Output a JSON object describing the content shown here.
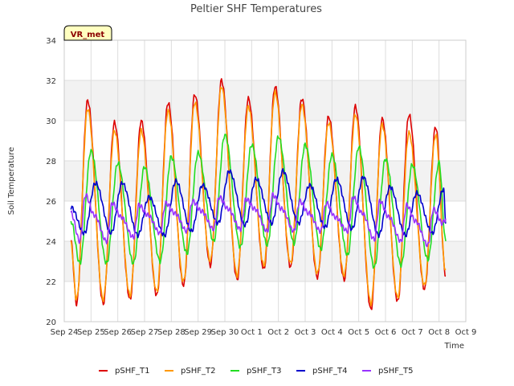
{
  "chart_data": {
    "type": "line",
    "title": "Peltier SHF Temperatures",
    "xlabel": "Time",
    "ylabel": "Soil Temperature",
    "site_label": "VR_met",
    "ylim": [
      20,
      34
    ],
    "yticks": [
      20,
      22,
      24,
      26,
      28,
      30,
      32,
      34
    ],
    "xlim": [
      "2023-09-24",
      "2023-10-09"
    ],
    "xticks": [
      "Sep 24",
      "Sep 25",
      "Sep 26",
      "Sep 27",
      "Sep 28",
      "Sep 29",
      "Sep 30",
      "Oct 1",
      "Oct 2",
      "Oct 3",
      "Oct 4",
      "Oct 5",
      "Oct 6",
      "Oct 7",
      "Oct 8",
      "Oct 9"
    ],
    "grid": true,
    "background_bands": true,
    "legend_position": "bottom",
    "series": [
      {
        "name": "pSHF_T1",
        "color": "#dd0000",
        "points": [
          [
            "2023-09-24 06:00",
            24.0
          ],
          [
            "2023-09-24 11:00",
            20.9
          ],
          [
            "2023-09-24 21:00",
            31.0
          ],
          [
            "2023-09-25 11:00",
            20.9
          ],
          [
            "2023-09-25 21:00",
            29.9
          ],
          [
            "2023-09-26 11:00",
            21.1
          ],
          [
            "2023-09-26 21:00",
            30.0
          ],
          [
            "2023-09-27 11:00",
            21.3
          ],
          [
            "2023-09-27 21:00",
            30.9
          ],
          [
            "2023-09-28 11:00",
            21.8
          ],
          [
            "2023-09-28 21:00",
            31.3
          ],
          [
            "2023-09-29 11:00",
            22.8
          ],
          [
            "2023-09-29 21:00",
            32.0
          ],
          [
            "2023-09-30 11:00",
            22.1
          ],
          [
            "2023-09-30 21:00",
            31.1
          ],
          [
            "2023-10-01 11:00",
            22.6
          ],
          [
            "2023-10-01 21:00",
            31.7
          ],
          [
            "2023-10-02 11:00",
            22.7
          ],
          [
            "2023-10-02 21:00",
            31.1
          ],
          [
            "2023-10-03 11:00",
            22.2
          ],
          [
            "2023-10-03 21:00",
            30.2
          ],
          [
            "2023-10-04 11:00",
            22.1
          ],
          [
            "2023-10-04 21:00",
            30.7
          ],
          [
            "2023-10-05 11:00",
            20.6
          ],
          [
            "2023-10-05 21:00",
            30.1
          ],
          [
            "2023-10-06 11:00",
            21.0
          ],
          [
            "2023-10-06 21:00",
            30.3
          ],
          [
            "2023-10-07 11:00",
            21.6
          ],
          [
            "2023-10-07 21:00",
            29.7
          ],
          [
            "2023-10-08 06:00",
            22.3
          ]
        ]
      },
      {
        "name": "pSHF_T2",
        "color": "#ff9900",
        "points": [
          [
            "2023-09-24 06:00",
            23.9
          ],
          [
            "2023-09-24 11:00",
            21.1
          ],
          [
            "2023-09-24 21:00",
            30.6
          ],
          [
            "2023-09-25 11:00",
            21.1
          ],
          [
            "2023-09-25 21:00",
            29.5
          ],
          [
            "2023-09-26 11:00",
            21.3
          ],
          [
            "2023-09-26 21:00",
            29.5
          ],
          [
            "2023-09-27 11:00",
            21.5
          ],
          [
            "2023-09-27 21:00",
            30.5
          ],
          [
            "2023-09-28 11:00",
            22.0
          ],
          [
            "2023-09-28 21:00",
            30.9
          ],
          [
            "2023-09-29 11:00",
            23.0
          ],
          [
            "2023-09-29 21:00",
            31.7
          ],
          [
            "2023-09-30 11:00",
            22.3
          ],
          [
            "2023-09-30 21:00",
            30.7
          ],
          [
            "2023-10-01 11:00",
            22.8
          ],
          [
            "2023-10-01 21:00",
            31.4
          ],
          [
            "2023-10-02 11:00",
            22.9
          ],
          [
            "2023-10-02 21:00",
            30.8
          ],
          [
            "2023-10-03 11:00",
            22.4
          ],
          [
            "2023-10-03 21:00",
            29.9
          ],
          [
            "2023-10-04 11:00",
            22.3
          ],
          [
            "2023-10-04 21:00",
            30.3
          ],
          [
            "2023-10-05 11:00",
            20.9
          ],
          [
            "2023-10-05 21:00",
            29.8
          ],
          [
            "2023-10-06 11:00",
            21.2
          ],
          [
            "2023-10-06 21:00",
            29.4
          ],
          [
            "2023-10-07 11:00",
            21.8
          ],
          [
            "2023-10-07 21:00",
            29.3
          ],
          [
            "2023-10-08 06:00",
            22.5
          ]
        ]
      },
      {
        "name": "pSHF_T3",
        "color": "#22dd22",
        "points": [
          [
            "2023-09-24 06:00",
            25.0
          ],
          [
            "2023-09-24 14:00",
            22.9
          ],
          [
            "2023-09-25 00:00",
            28.5
          ],
          [
            "2023-09-25 14:00",
            22.9
          ],
          [
            "2023-09-26 00:00",
            27.9
          ],
          [
            "2023-09-26 14:00",
            22.9
          ],
          [
            "2023-09-27 00:00",
            27.7
          ],
          [
            "2023-09-27 14:00",
            23.0
          ],
          [
            "2023-09-28 00:00",
            28.2
          ],
          [
            "2023-09-28 14:00",
            23.4
          ],
          [
            "2023-09-29 00:00",
            28.4
          ],
          [
            "2023-09-29 14:00",
            24.0
          ],
          [
            "2023-09-30 00:00",
            29.3
          ],
          [
            "2023-09-30 14:00",
            23.7
          ],
          [
            "2023-10-01 00:00",
            28.8
          ],
          [
            "2023-10-01 14:00",
            23.8
          ],
          [
            "2023-10-02 00:00",
            29.2
          ],
          [
            "2023-10-02 14:00",
            23.9
          ],
          [
            "2023-10-03 00:00",
            28.8
          ],
          [
            "2023-10-03 14:00",
            23.6
          ],
          [
            "2023-10-04 00:00",
            28.3
          ],
          [
            "2023-10-04 14:00",
            23.3
          ],
          [
            "2023-10-05 00:00",
            28.7
          ],
          [
            "2023-10-05 14:00",
            22.7
          ],
          [
            "2023-10-06 00:00",
            28.1
          ],
          [
            "2023-10-06 14:00",
            22.8
          ],
          [
            "2023-10-07 00:00",
            27.8
          ],
          [
            "2023-10-07 14:00",
            23.1
          ],
          [
            "2023-10-08 00:00",
            27.9
          ],
          [
            "2023-10-08 06:00",
            24.0
          ]
        ]
      },
      {
        "name": "pSHF_T4",
        "color": "#0000cc",
        "points": [
          [
            "2023-09-24 06:00",
            25.7
          ],
          [
            "2023-09-24 18:00",
            24.4
          ],
          [
            "2023-09-25 04:00",
            26.9
          ],
          [
            "2023-09-25 18:00",
            24.4
          ],
          [
            "2023-09-26 04:00",
            26.9
          ],
          [
            "2023-09-26 18:00",
            24.3
          ],
          [
            "2023-09-27 04:00",
            26.2
          ],
          [
            "2023-09-27 18:00",
            24.3
          ],
          [
            "2023-09-28 04:00",
            27.0
          ],
          [
            "2023-09-28 18:00",
            24.5
          ],
          [
            "2023-09-29 04:00",
            26.8
          ],
          [
            "2023-09-29 18:00",
            24.9
          ],
          [
            "2023-09-30 04:00",
            27.5
          ],
          [
            "2023-09-30 18:00",
            24.8
          ],
          [
            "2023-10-01 04:00",
            27.1
          ],
          [
            "2023-10-01 18:00",
            24.9
          ],
          [
            "2023-10-02 04:00",
            27.5
          ],
          [
            "2023-10-02 18:00",
            24.9
          ],
          [
            "2023-10-03 04:00",
            26.8
          ],
          [
            "2023-10-03 18:00",
            24.7
          ],
          [
            "2023-10-04 04:00",
            27.1
          ],
          [
            "2023-10-04 18:00",
            24.6
          ],
          [
            "2023-10-05 04:00",
            27.2
          ],
          [
            "2023-10-05 18:00",
            24.3
          ],
          [
            "2023-10-06 04:00",
            26.7
          ],
          [
            "2023-10-06 18:00",
            24.3
          ],
          [
            "2023-10-07 04:00",
            26.4
          ],
          [
            "2023-10-07 18:00",
            24.4
          ],
          [
            "2023-10-08 04:00",
            26.6
          ],
          [
            "2023-10-08 06:00",
            25.0
          ]
        ]
      },
      {
        "name": "pSHF_T5",
        "color": "#9933ff",
        "points": [
          [
            "2023-09-24 06:00",
            25.4
          ],
          [
            "2023-09-24 14:00",
            24.0
          ],
          [
            "2023-09-24 19:00",
            26.3
          ],
          [
            "2023-09-25 03:00",
            25.3
          ],
          [
            "2023-09-25 14:00",
            24.0
          ],
          [
            "2023-09-25 19:00",
            25.9
          ],
          [
            "2023-09-26 03:00",
            25.2
          ],
          [
            "2023-09-26 14:00",
            24.2
          ],
          [
            "2023-09-26 19:00",
            25.8
          ],
          [
            "2023-09-27 03:00",
            25.3
          ],
          [
            "2023-09-27 14:00",
            24.4
          ],
          [
            "2023-09-27 19:00",
            25.9
          ],
          [
            "2023-09-28 03:00",
            25.4
          ],
          [
            "2023-09-28 14:00",
            24.5
          ],
          [
            "2023-09-28 19:00",
            26.0
          ],
          [
            "2023-09-29 03:00",
            25.5
          ],
          [
            "2023-09-29 14:00",
            24.6
          ],
          [
            "2023-09-29 19:00",
            26.2
          ],
          [
            "2023-09-30 03:00",
            25.6
          ],
          [
            "2023-09-30 14:00",
            24.6
          ],
          [
            "2023-09-30 19:00",
            26.1
          ],
          [
            "2023-10-01 03:00",
            25.6
          ],
          [
            "2023-10-01 14:00",
            24.5
          ],
          [
            "2023-10-01 19:00",
            26.3
          ],
          [
            "2023-10-02 03:00",
            25.6
          ],
          [
            "2023-10-02 14:00",
            24.5
          ],
          [
            "2023-10-02 19:00",
            26.0
          ],
          [
            "2023-10-03 03:00",
            25.4
          ],
          [
            "2023-10-03 14:00",
            24.5
          ],
          [
            "2023-10-03 19:00",
            25.9
          ],
          [
            "2023-10-04 03:00",
            25.2
          ],
          [
            "2023-10-04 14:00",
            24.5
          ],
          [
            "2023-10-04 19:00",
            26.2
          ],
          [
            "2023-10-05 03:00",
            25.4
          ],
          [
            "2023-10-05 14:00",
            24.1
          ],
          [
            "2023-10-05 19:00",
            26.0
          ],
          [
            "2023-10-06 03:00",
            25.2
          ],
          [
            "2023-10-06 14:00",
            24.0
          ],
          [
            "2023-10-06 19:00",
            25.8
          ],
          [
            "2023-10-07 03:00",
            25.0
          ],
          [
            "2023-10-07 14:00",
            23.8
          ],
          [
            "2023-10-07 19:00",
            25.6
          ],
          [
            "2023-10-08 03:00",
            24.9
          ],
          [
            "2023-10-08 06:00",
            25.1
          ]
        ]
      }
    ]
  }
}
